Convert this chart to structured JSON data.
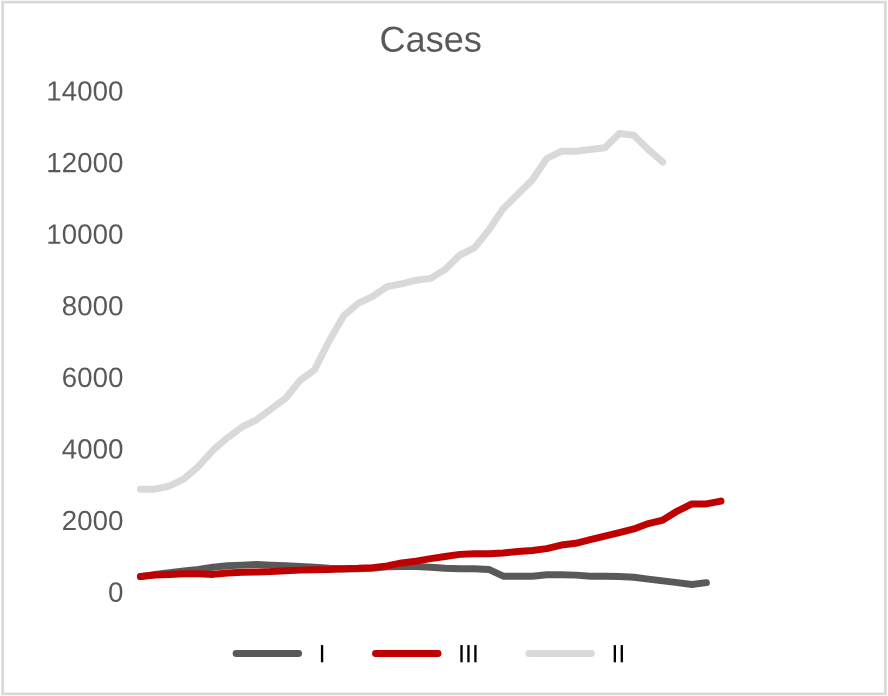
{
  "chart_data": {
    "type": "line",
    "title": "Cases",
    "categories": [
      null,
      null,
      null,
      null,
      null,
      null,
      null,
      null,
      null,
      null,
      null,
      null,
      null,
      null,
      null,
      null,
      null,
      null,
      null,
      null,
      null,
      null,
      null,
      null,
      null,
      null,
      null,
      null,
      null,
      null,
      null,
      null,
      null,
      null,
      null,
      null,
      null,
      null,
      null,
      null,
      null
    ],
    "series": [
      {
        "name": "I",
        "color": "#595959",
        "values": [
          420,
          480,
          530,
          580,
          620,
          680,
          720,
          740,
          760,
          740,
          720,
          700,
          680,
          650,
          630,
          640,
          650,
          690,
          700,
          700,
          680,
          650,
          640,
          640,
          620,
          430,
          430,
          430,
          470,
          470,
          460,
          430,
          430,
          420,
          400,
          350,
          300,
          250,
          200,
          250,
          null
        ]
      },
      {
        "name": "III",
        "color": "#c00000",
        "values": [
          420,
          460,
          480,
          500,
          500,
          480,
          520,
          540,
          550,
          560,
          580,
          600,
          610,
          620,
          640,
          650,
          670,
          720,
          800,
          850,
          920,
          980,
          1040,
          1060,
          1060,
          1080,
          1120,
          1150,
          1200,
          1300,
          1350,
          1450,
          1550,
          1650,
          1750,
          1900,
          2000,
          2250,
          2450,
          2450,
          2530
        ]
      },
      {
        "name": "II",
        "color": "#d9d9d9",
        "values": [
          2860,
          2860,
          2950,
          3150,
          3500,
          3950,
          4300,
          4600,
          4800,
          5100,
          5400,
          5900,
          6200,
          7000,
          7700,
          8050,
          8250,
          8520,
          8600,
          8700,
          8750,
          9000,
          9400,
          9600,
          10100,
          10700,
          11100,
          11500,
          12100,
          12300,
          12300,
          12350,
          12400,
          12800,
          12750,
          12350,
          12000,
          null,
          null,
          null,
          null
        ]
      }
    ],
    "ylim": [
      0,
      14000
    ],
    "yticks": [
      0,
      2000,
      4000,
      6000,
      8000,
      10000,
      12000,
      14000
    ],
    "tick_labels": "y",
    "grid": false,
    "legend": "bottom",
    "marker": "none",
    "line_style": "solid"
  }
}
